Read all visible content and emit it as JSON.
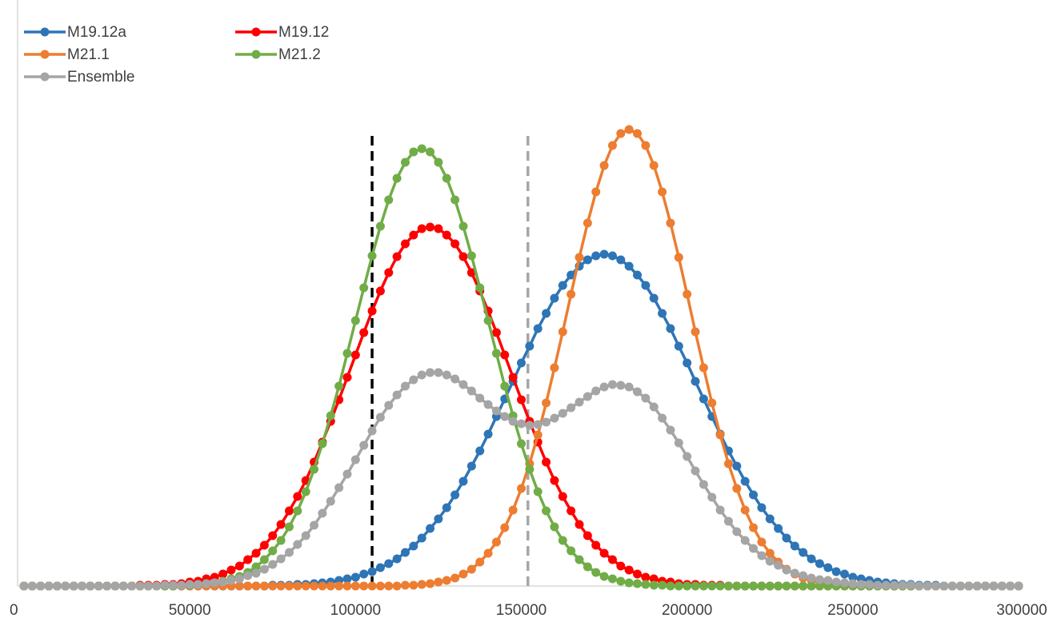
{
  "chart_data": {
    "type": "line",
    "xlim": [
      0,
      300000
    ],
    "ylim": [
      0,
      600
    ],
    "xticks": [
      0,
      50000,
      100000,
      150000,
      200000,
      250000,
      300000
    ],
    "grid": false,
    "legend": "top-left",
    "x": [
      0,
      2500,
      5000,
      7500,
      10000,
      12500,
      15000,
      17500,
      20000,
      22500,
      25000,
      27500,
      30000,
      32500,
      35000,
      37500,
      40000,
      42500,
      45000,
      47500,
      50000,
      52500,
      55000,
      57500,
      60000,
      62500,
      65000,
      67500,
      70000,
      72500,
      75000,
      77500,
      80000,
      82500,
      85000,
      87500,
      90000,
      92500,
      95000,
      97500,
      100000,
      102500,
      105000,
      107500,
      110000,
      112500,
      115000,
      117500,
      120000,
      122500,
      125000,
      127500,
      130000,
      132500,
      135000,
      137500,
      140000,
      142500,
      145000,
      147500,
      150000,
      152500,
      155000,
      157500,
      160000,
      162500,
      165000,
      167500,
      170000,
      172500,
      175000,
      177500,
      180000,
      182500,
      185000,
      187500,
      190000,
      192500,
      195000,
      197500,
      200000,
      202500,
      205000,
      207500,
      210000,
      212500,
      215000,
      217500,
      220000,
      222500,
      225000,
      227500,
      230000,
      232500,
      235000,
      237500,
      240000,
      242500,
      245000,
      247500,
      250000,
      252500,
      255000,
      257500,
      260000,
      262500,
      265000,
      267500,
      270000,
      272500,
      275000,
      277500,
      280000,
      282500,
      285000,
      287500,
      290000,
      292500,
      295000,
      297500,
      300000
    ],
    "series": [
      {
        "name": "M19.12a",
        "color": "#2e75b6",
        "values": [
          0,
          0,
          0,
          0,
          0,
          0,
          0,
          0,
          0,
          0,
          0,
          0,
          0,
          0,
          0,
          0,
          0,
          0,
          0,
          0,
          0,
          0,
          0,
          0,
          0,
          0,
          0,
          0,
          0,
          0,
          1,
          1,
          1,
          2,
          2,
          3,
          4,
          5,
          7,
          9,
          11,
          15,
          18,
          23,
          28,
          34,
          42,
          50,
          60,
          72,
          84,
          98,
          114,
          131,
          150,
          169,
          190,
          212,
          234,
          256,
          279,
          300,
          322,
          341,
          360,
          376,
          389,
          400,
          408,
          413,
          415,
          413,
          408,
          400,
          389,
          376,
          360,
          341,
          322,
          300,
          279,
          256,
          234,
          212,
          190,
          169,
          150,
          131,
          114,
          98,
          84,
          72,
          60,
          50,
          42,
          34,
          28,
          23,
          18,
          15,
          11,
          9,
          7,
          5,
          4,
          3,
          2,
          2,
          1,
          1,
          1,
          0,
          0,
          0,
          0,
          0,
          0,
          0,
          0,
          0,
          0
        ]
      },
      {
        "name": "M19.12",
        "color": "#ff0000",
        "values": [
          0,
          0,
          0,
          0,
          0,
          0,
          0,
          0,
          0,
          0,
          0,
          0,
          0,
          0,
          1,
          1,
          1,
          2,
          2,
          3,
          5,
          6,
          9,
          11,
          15,
          20,
          25,
          33,
          41,
          51,
          63,
          77,
          94,
          112,
          132,
          155,
          180,
          206,
          233,
          261,
          289,
          317,
          344,
          369,
          392,
          412,
          428,
          439,
          447,
          449,
          447,
          439,
          428,
          412,
          392,
          369,
          344,
          317,
          289,
          261,
          233,
          206,
          180,
          155,
          132,
          112,
          94,
          77,
          63,
          51,
          41,
          33,
          25,
          20,
          15,
          11,
          9,
          6,
          5,
          3,
          2,
          2,
          1,
          1,
          1,
          0,
          0,
          0,
          0,
          0,
          0,
          0,
          0,
          0,
          0,
          0,
          0,
          0,
          0,
          0,
          0,
          0,
          0,
          0,
          0,
          0,
          0,
          0,
          0,
          0,
          0,
          0,
          0,
          0,
          0,
          0,
          0,
          0,
          0,
          0,
          0
        ]
      },
      {
        "name": "M21.1",
        "color": "#ed7d31",
        "values": [
          0,
          0,
          0,
          0,
          0,
          0,
          0,
          0,
          0,
          0,
          0,
          0,
          0,
          0,
          0,
          0,
          0,
          0,
          0,
          0,
          0,
          0,
          0,
          0,
          0,
          0,
          0,
          0,
          0,
          0,
          0,
          0,
          0,
          0,
          0,
          0,
          0,
          0,
          0,
          0,
          0,
          0,
          0,
          0,
          0,
          0,
          1,
          1,
          2,
          3,
          5,
          7,
          10,
          15,
          21,
          30,
          41,
          55,
          73,
          95,
          122,
          153,
          189,
          229,
          273,
          318,
          365,
          411,
          454,
          493,
          526,
          551,
          566,
          571,
          566,
          551,
          526,
          493,
          454,
          411,
          365,
          318,
          273,
          229,
          189,
          153,
          122,
          95,
          73,
          55,
          41,
          30,
          21,
          15,
          10,
          7,
          5,
          3,
          2,
          1,
          1,
          0,
          0,
          0,
          0,
          0,
          0,
          0,
          0,
          0,
          0,
          0,
          0,
          0,
          0,
          0,
          0,
          0,
          0,
          0,
          0
        ]
      },
      {
        "name": "M21.2",
        "color": "#70ad47",
        "values": [
          0,
          0,
          0,
          0,
          0,
          0,
          0,
          0,
          0,
          0,
          0,
          0,
          0,
          0,
          0,
          0,
          0,
          0,
          0,
          1,
          1,
          2,
          3,
          4,
          6,
          9,
          12,
          17,
          24,
          33,
          44,
          57,
          74,
          94,
          118,
          146,
          178,
          213,
          250,
          291,
          332,
          373,
          413,
          450,
          483,
          510,
          530,
          543,
          547,
          543,
          530,
          510,
          483,
          450,
          413,
          373,
          332,
          291,
          250,
          213,
          178,
          146,
          118,
          94,
          74,
          57,
          44,
          33,
          24,
          17,
          12,
          9,
          6,
          4,
          3,
          2,
          1,
          1,
          0,
          0,
          0,
          0,
          0,
          0,
          0,
          0,
          0,
          0,
          0,
          0,
          0,
          0,
          0,
          0,
          0,
          0,
          0,
          0,
          0,
          0,
          0,
          0,
          0,
          0,
          0,
          0,
          0,
          0,
          0,
          0,
          0,
          0,
          0,
          0,
          0,
          0,
          0,
          0,
          0,
          0,
          0
        ]
      },
      {
        "name": "Ensemble",
        "color": "#a5a5a5",
        "values": [
          0,
          0,
          0,
          0,
          0,
          0,
          0,
          0,
          0,
          0,
          0,
          0,
          0,
          0,
          0,
          0,
          0,
          1,
          1,
          1,
          2,
          2,
          3,
          4,
          5,
          7,
          9,
          13,
          16,
          21,
          27,
          34,
          42,
          52,
          63,
          76,
          91,
          106,
          123,
          140,
          158,
          176,
          194,
          211,
          226,
          239,
          250,
          258,
          264,
          267,
          267,
          264,
          259,
          252,
          244,
          235,
          227,
          219,
          212,
          206,
          203,
          201,
          202,
          205,
          210,
          216,
          223,
          230,
          237,
          244,
          249,
          252,
          251,
          249,
          243,
          235,
          224,
          210,
          195,
          179,
          162,
          144,
          127,
          111,
          95,
          81,
          68,
          57,
          47,
          38,
          31,
          26,
          20,
          16,
          13,
          10,
          8,
          7,
          5,
          4,
          3,
          2,
          2,
          1,
          1,
          1,
          1,
          1,
          0,
          0,
          0,
          0,
          0,
          0,
          0,
          0,
          0,
          0,
          0,
          0,
          0
        ]
      }
    ],
    "reference_lines": [
      {
        "x": 105000,
        "color": "#000000"
      },
      {
        "x": 152000,
        "color": "#a6a6a6"
      }
    ]
  }
}
